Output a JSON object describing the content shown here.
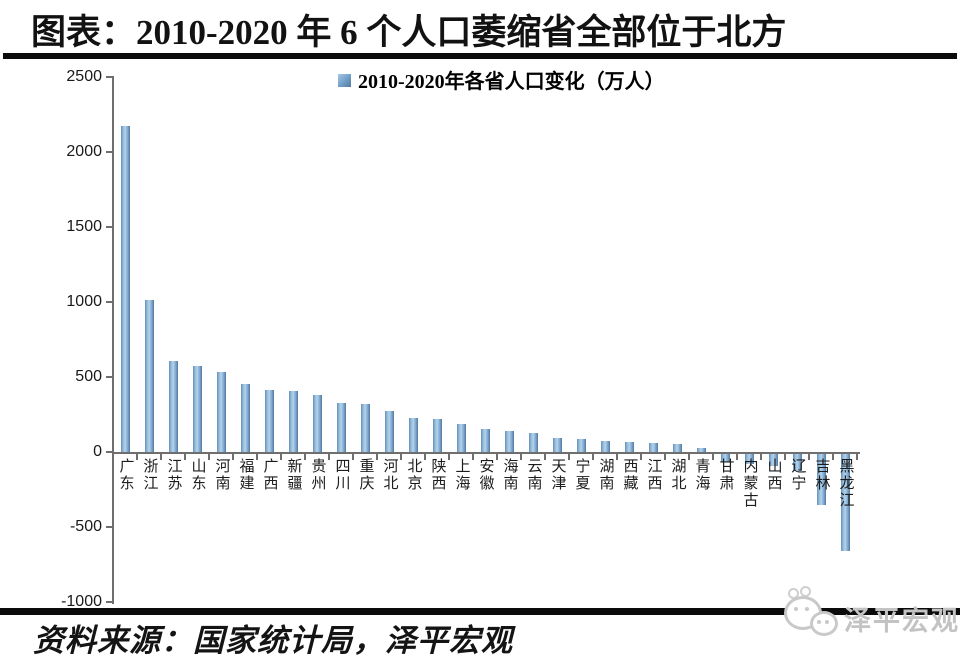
{
  "header": {
    "title": "图表：2010-2020 年 6 个人口萎缩省全部位于北方"
  },
  "chart_data": {
    "type": "bar",
    "legend": "2010-2020年各省人口变化（万人）",
    "legend_position": "top-center",
    "grid": false,
    "categories": [
      "广东",
      "浙江",
      "江苏",
      "山东",
      "河南",
      "福建",
      "广西",
      "新疆",
      "贵州",
      "四川",
      "重庆",
      "河北",
      "北京",
      "陕西",
      "上海",
      "安徽",
      "海南",
      "云南",
      "天津",
      "宁夏",
      "湖南",
      "西藏",
      "江西",
      "湖北",
      "青海",
      "甘肃",
      "内蒙古",
      "山西",
      "辽宁",
      "吉林",
      "黑龙江"
    ],
    "values": [
      2171,
      1014,
      609,
      573,
      534,
      456,
      413,
      406,
      381,
      326,
      321,
      276,
      228,
      221,
      185,
      153,
      141,
      124,
      93,
      90,
      76,
      65,
      62,
      51,
      30,
      -56,
      -66,
      -79,
      -115,
      -338,
      -646
    ],
    "ylim": [
      -1000,
      2500
    ],
    "yticks": [
      2500,
      2000,
      1500,
      1000,
      500,
      0,
      -500,
      -1000
    ],
    "bar_color_edge": "#53799f",
    "bar_color_mid": "#7ca7cd",
    "bar_color_light": "#b2d2ea",
    "axis_color": "#6e6e6e"
  },
  "footer": {
    "source_label": "资料来源：国家统计局，泽平宏观",
    "watermark_text": "泽平宏观"
  }
}
